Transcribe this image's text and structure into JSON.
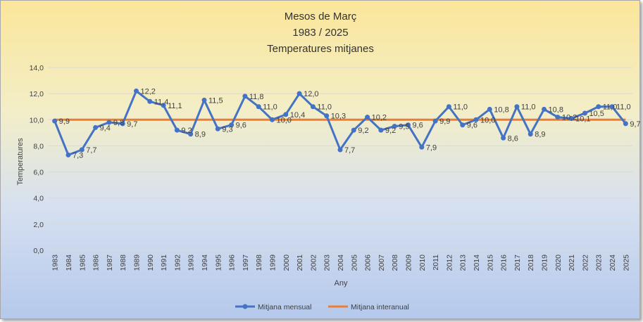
{
  "chart_data": {
    "type": "line",
    "title": [
      "Mesos de Març",
      "1983 / 2025",
      "Temperatures mitjanes"
    ],
    "xlabel": "Any",
    "ylabel": "Temperatures",
    "ylim": [
      0,
      14
    ],
    "yticks": [
      "0,0",
      "2,0",
      "4,0",
      "6,0",
      "8,0",
      "10,0",
      "12,0",
      "14,0"
    ],
    "grid": true,
    "legend_position": "bottom",
    "colors": {
      "mensual": "#4472c4",
      "interanual": "#ed7d31",
      "grid": "#d9d9d9"
    },
    "categories": [
      "1983",
      "1984",
      "1985",
      "1986",
      "1987",
      "1988",
      "1989",
      "1990",
      "1991",
      "1992",
      "1993",
      "1994",
      "1995",
      "1996",
      "1997",
      "1998",
      "1999",
      "2000",
      "2001",
      "2002",
      "2003",
      "2004",
      "2005",
      "2006",
      "2007",
      "2008",
      "2009",
      "2010",
      "2011",
      "2012",
      "2013",
      "2014",
      "2015",
      "2016",
      "2017",
      "2018",
      "2019",
      "2020",
      "2021",
      "2022",
      "2023",
      "2024",
      "2025"
    ],
    "series": [
      {
        "name": "Mitjana mensual",
        "values": [
          9.9,
          7.3,
          7.7,
          9.4,
          9.8,
          9.7,
          12.2,
          11.4,
          11.1,
          9.2,
          8.9,
          11.5,
          9.3,
          9.6,
          11.8,
          11.0,
          10.0,
          10.4,
          12.0,
          11.0,
          10.3,
          7.7,
          9.2,
          10.2,
          9.2,
          9.5,
          9.6,
          7.9,
          9.9,
          11.0,
          9.6,
          10.0,
          10.8,
          8.6,
          11.0,
          8.9,
          10.8,
          10.2,
          10.1,
          10.5,
          11.0,
          11.0,
          9.7
        ],
        "labels": [
          "9,9",
          "7,3",
          "7,7",
          "9,4",
          "9,8",
          "9,7",
          "12,2",
          "11,4",
          "11,1",
          "9,2",
          "8,9",
          "11,5",
          "9,3",
          "9,6",
          "11,8",
          "11,0",
          "10,0",
          "10,4",
          "12,0",
          "11,0",
          "10,3",
          "7,7",
          "9,2",
          "10,2",
          "9,2",
          "9,5",
          "9,6",
          "7,9",
          "9,9",
          "11,0",
          "9,6",
          "10,0",
          "10,8",
          "8,6",
          "11,0",
          "8,9",
          "10,8",
          "10,2",
          "10,1",
          "10,5",
          "11,0",
          "11,0",
          "9,7"
        ]
      },
      {
        "name": "Mitjana interanual",
        "values": [
          10.0,
          10.0,
          10.0,
          10.0,
          10.0,
          10.0,
          10.0,
          10.0,
          10.0,
          10.0,
          10.0,
          10.0,
          10.0,
          10.0,
          10.0,
          10.0,
          10.0,
          10.0,
          10.0,
          10.0,
          10.0,
          10.0,
          10.0,
          10.0,
          10.0,
          10.0,
          10.0,
          10.0,
          10.0,
          10.0,
          10.0,
          10.0,
          10.0,
          10.0,
          10.0,
          10.0,
          10.0,
          10.0,
          10.0,
          10.0,
          10.0,
          10.0,
          10.0
        ]
      }
    ]
  }
}
